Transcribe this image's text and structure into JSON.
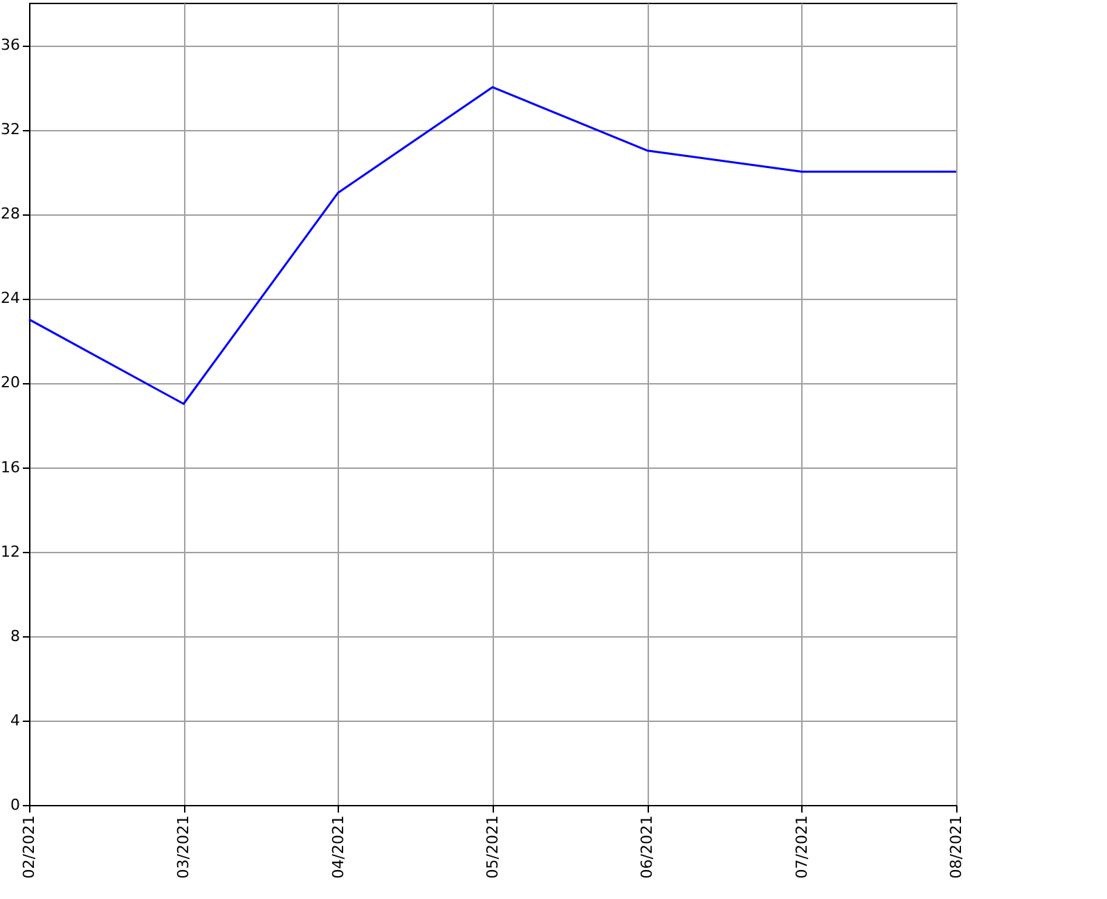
{
  "chart_data": {
    "type": "line",
    "categories": [
      "02/2021",
      "03/2021",
      "04/2021",
      "05/2021",
      "06/2021",
      "07/2021",
      "08/2021"
    ],
    "series": [
      {
        "color": "#0000ff",
        "values": [
          23,
          19,
          29,
          34,
          31,
          30,
          30
        ]
      }
    ],
    "ylim": [
      0,
      38
    ],
    "yticks": [
      0,
      4,
      8,
      12,
      16,
      20,
      24,
      28,
      32,
      36
    ],
    "grid": true,
    "marker": "none",
    "line_style": "solid"
  }
}
